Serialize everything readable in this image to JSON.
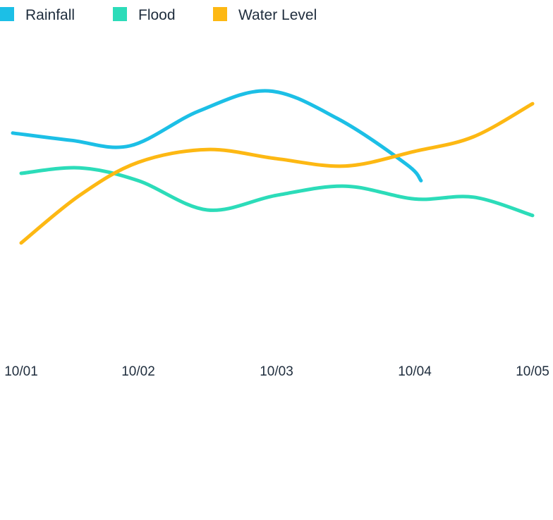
{
  "chart_data": {
    "type": "line",
    "title": "",
    "xlabel": "",
    "ylabel": "",
    "x": [
      "10/01",
      "10/02",
      "10/03",
      "10/04",
      "10/05"
    ],
    "ylim": [
      0,
      100
    ],
    "grid": false,
    "legend_position": "top-left",
    "series": [
      {
        "name": "Rainfall",
        "color": "#1cbfe6",
        "points": [
          [
            "10/01",
            62
          ],
          [
            "10/01 12:00",
            58
          ],
          [
            "10/02",
            55
          ],
          [
            "10/02 12:00",
            74
          ],
          [
            "10/03",
            85
          ],
          [
            "10/03 12:00",
            70
          ],
          [
            "10/04",
            45
          ],
          [
            "10/04 03:00",
            36
          ]
        ]
      },
      {
        "name": "Flood",
        "color": "#2cdcb9",
        "points": [
          [
            "10/01",
            40
          ],
          [
            "10/01 12:00",
            43
          ],
          [
            "10/02",
            36
          ],
          [
            "10/02 12:00",
            20
          ],
          [
            "10/03",
            28
          ],
          [
            "10/03 12:00",
            33
          ],
          [
            "10/04",
            26
          ],
          [
            "10/04 12:00",
            27
          ],
          [
            "10/05",
            17
          ]
        ]
      },
      {
        "name": "Water Level",
        "color": "#fdb813",
        "points": [
          [
            "10/01",
            2
          ],
          [
            "10/01 12:00",
            28
          ],
          [
            "10/02",
            46
          ],
          [
            "10/02 12:00",
            53
          ],
          [
            "10/03",
            48
          ],
          [
            "10/03 12:00",
            44
          ],
          [
            "10/04",
            52
          ],
          [
            "10/04 12:00",
            60
          ],
          [
            "10/05",
            78
          ]
        ]
      }
    ]
  }
}
